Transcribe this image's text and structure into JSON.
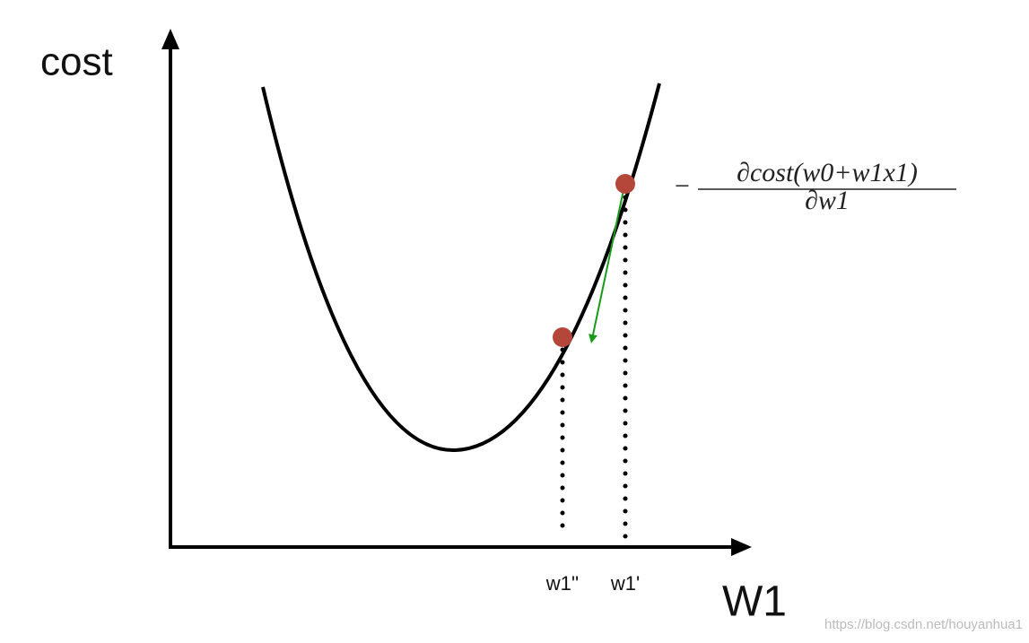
{
  "axes": {
    "y_label": "cost",
    "x_label": "W1"
  },
  "points": [
    {
      "label": "w1''"
    },
    {
      "label": "w1'"
    }
  ],
  "formula": {
    "sign": "−",
    "numerator": "∂cost(w0+w1x1)",
    "denominator": "∂w1"
  },
  "watermark": "https://blog.csdn.net/houyanhua1"
}
